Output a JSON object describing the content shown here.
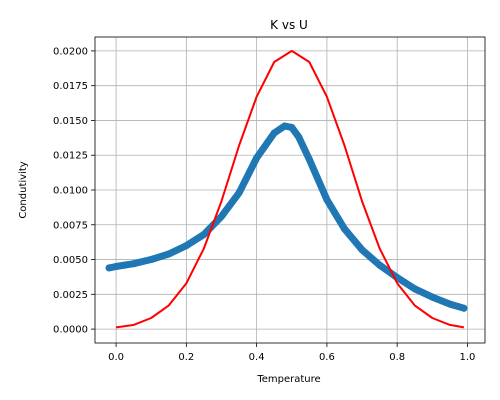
{
  "chart_data": {
    "type": "line",
    "title": "K vs U",
    "xlabel": "Temperature",
    "ylabel": "Condutivity",
    "xlim": [
      -0.06,
      1.05
    ],
    "ylim": [
      -0.001,
      0.021
    ],
    "xticks": [
      0.0,
      0.2,
      0.4,
      0.6,
      0.8,
      1.0
    ],
    "xtick_labels": [
      "0.0",
      "0.2",
      "0.4",
      "0.6",
      "0.8",
      "1.0"
    ],
    "yticks": [
      0.0,
      0.0025,
      0.005,
      0.0075,
      0.01,
      0.0125,
      0.015,
      0.0175,
      0.02
    ],
    "ytick_labels": [
      "0.0000",
      "0.0025",
      "0.0050",
      "0.0075",
      "0.0100",
      "0.0125",
      "0.0150",
      "0.0175",
      "0.0200"
    ],
    "grid": true,
    "series": [
      {
        "style": "scatter",
        "color": "#1f77b4",
        "x": [
          -0.02,
          0.0,
          0.05,
          0.1,
          0.15,
          0.2,
          0.25,
          0.3,
          0.35,
          0.4,
          0.45,
          0.48,
          0.5,
          0.52,
          0.55,
          0.6,
          0.65,
          0.7,
          0.75,
          0.8,
          0.85,
          0.9,
          0.95,
          0.99
        ],
        "y": [
          0.0044,
          0.0045,
          0.0047,
          0.005,
          0.0054,
          0.006,
          0.0068,
          0.0081,
          0.0098,
          0.0123,
          0.0141,
          0.0146,
          0.0145,
          0.0138,
          0.0122,
          0.0093,
          0.0072,
          0.0057,
          0.0046,
          0.0037,
          0.0029,
          0.0023,
          0.0018,
          0.0015
        ]
      },
      {
        "style": "line",
        "color": "#ff0000",
        "x": [
          0.0,
          0.05,
          0.1,
          0.15,
          0.2,
          0.25,
          0.3,
          0.35,
          0.4,
          0.45,
          0.5,
          0.55,
          0.6,
          0.65,
          0.7,
          0.75,
          0.8,
          0.85,
          0.9,
          0.95,
          0.99
        ],
        "y": [
          0.00012,
          0.0003,
          0.0008,
          0.0017,
          0.0033,
          0.0058,
          0.0092,
          0.0132,
          0.0167,
          0.0192,
          0.02,
          0.0192,
          0.0167,
          0.0132,
          0.0092,
          0.0058,
          0.0033,
          0.0017,
          0.0008,
          0.0003,
          0.00012
        ]
      }
    ]
  }
}
